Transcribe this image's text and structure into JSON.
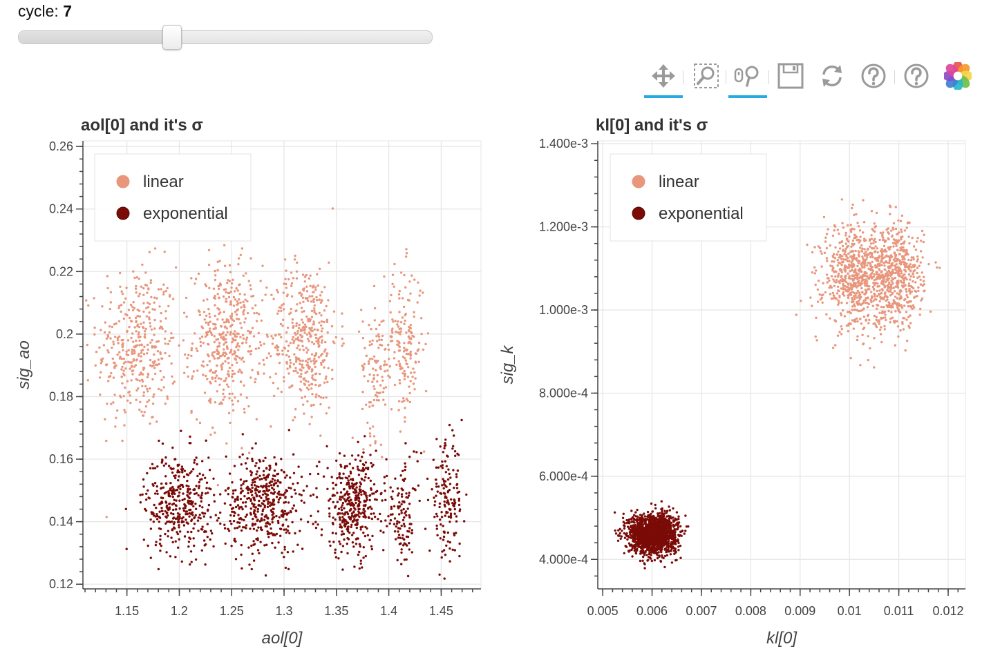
{
  "slider": {
    "label": "cycle: ",
    "value": "7",
    "level": 0.37
  },
  "toolbar": {
    "tools": [
      {
        "icon": "pan-icon",
        "active": true
      },
      {
        "icon": "box-zoom-icon",
        "active": false
      },
      {
        "icon": "wheel-zoom-icon",
        "active": true
      },
      {
        "icon": "save-icon",
        "active": false
      },
      {
        "icon": "reset-icon",
        "active": false
      },
      {
        "icon": "help-icon",
        "active": false
      },
      {
        "icon": "help-icon",
        "active": false
      },
      {
        "icon": "bokeh-logo-icon",
        "active": false
      }
    ]
  },
  "colors": {
    "linear": "#e8967c",
    "exponential": "#7a0b07",
    "grid": "#e5e5e5",
    "axis": "#444444"
  },
  "chart_data": [
    {
      "type": "scatter",
      "title": "aol[0] and it's σ",
      "xlabel": "aol[0]",
      "ylabel": "sig_ao",
      "xlim": [
        1.108,
        1.488
      ],
      "ylim": [
        0.1185,
        0.2618
      ],
      "xticks": [
        "1.15",
        "1.2",
        "1.25",
        "1.3",
        "1.35",
        "1.4",
        "1.45"
      ],
      "xtick_values": [
        1.15,
        1.2,
        1.25,
        1.3,
        1.35,
        1.4,
        1.45
      ],
      "yticks": [
        "0.12",
        "0.14",
        "0.16",
        "0.18",
        "0.2",
        "0.22",
        "0.24",
        "0.26"
      ],
      "ytick_values": [
        0.12,
        0.14,
        0.16,
        0.18,
        0.2,
        0.22,
        0.24,
        0.26
      ],
      "legend": {
        "placement": "top-left",
        "entries": [
          "linear",
          "exponential"
        ]
      },
      "series": [
        {
          "name": "linear",
          "clusters": [
            {
              "x": 1.16,
              "y": 0.196,
              "sx": 0.019,
              "sy": 0.013,
              "n": 380
            },
            {
              "x": 1.245,
              "y": 0.198,
              "sx": 0.016,
              "sy": 0.012,
              "n": 420
            },
            {
              "x": 1.32,
              "y": 0.199,
              "sx": 0.016,
              "sy": 0.012,
              "n": 400
            },
            {
              "x": 1.388,
              "y": 0.19,
              "sx": 0.007,
              "sy": 0.011,
              "n": 110
            },
            {
              "x": 1.415,
              "y": 0.197,
              "sx": 0.009,
              "sy": 0.012,
              "n": 170
            }
          ]
        },
        {
          "name": "exponential",
          "clusters": [
            {
              "x": 1.2,
              "y": 0.146,
              "sx": 0.017,
              "sy": 0.008,
              "n": 380
            },
            {
              "x": 1.281,
              "y": 0.146,
              "sx": 0.018,
              "sy": 0.008,
              "n": 440
            },
            {
              "x": 1.366,
              "y": 0.145,
              "sx": 0.016,
              "sy": 0.008,
              "n": 400
            },
            {
              "x": 1.415,
              "y": 0.142,
              "sx": 0.006,
              "sy": 0.009,
              "n": 100
            },
            {
              "x": 1.455,
              "y": 0.147,
              "sx": 0.008,
              "sy": 0.009,
              "n": 160
            }
          ]
        }
      ]
    },
    {
      "type": "scatter",
      "title": "kl[0] and it's σ",
      "xlabel": "kl[0]",
      "ylabel": "sig_k",
      "xlim": [
        0.0049,
        0.01235
      ],
      "ylim": [
        0.000329,
        0.001407
      ],
      "xticks": [
        "0.005",
        "0.006",
        "0.007",
        "0.008",
        "0.009",
        "0.01",
        "0.011",
        "0.012"
      ],
      "xtick_values": [
        0.005,
        0.006,
        0.007,
        0.008,
        0.009,
        0.01,
        0.011,
        0.012
      ],
      "yticks": [
        "4.000e-4",
        "6.000e-4",
        "8.000e-4",
        "1.000e-3",
        "1.200e-3",
        "1.400e-3"
      ],
      "ytick_values": [
        0.0004,
        0.0006,
        0.0008,
        0.001,
        0.0012,
        0.0014
      ],
      "legend": {
        "placement": "top-left",
        "entries": [
          "linear",
          "exponential"
        ]
      },
      "series": [
        {
          "name": "linear",
          "clusters": [
            {
              "x": 0.01015,
              "y": 0.00108,
              "sx": 0.00034,
              "sy": 6.2e-05,
              "n": 700
            },
            {
              "x": 0.01098,
              "y": 0.00108,
              "sx": 0.00026,
              "sy": 6.2e-05,
              "n": 500
            }
          ]
        },
        {
          "name": "exponential",
          "clusters": [
            {
              "x": 0.00602,
              "y": 0.000462,
              "sx": 0.00024,
              "sy": 2.35e-05,
              "n": 1700
            }
          ]
        }
      ]
    }
  ]
}
